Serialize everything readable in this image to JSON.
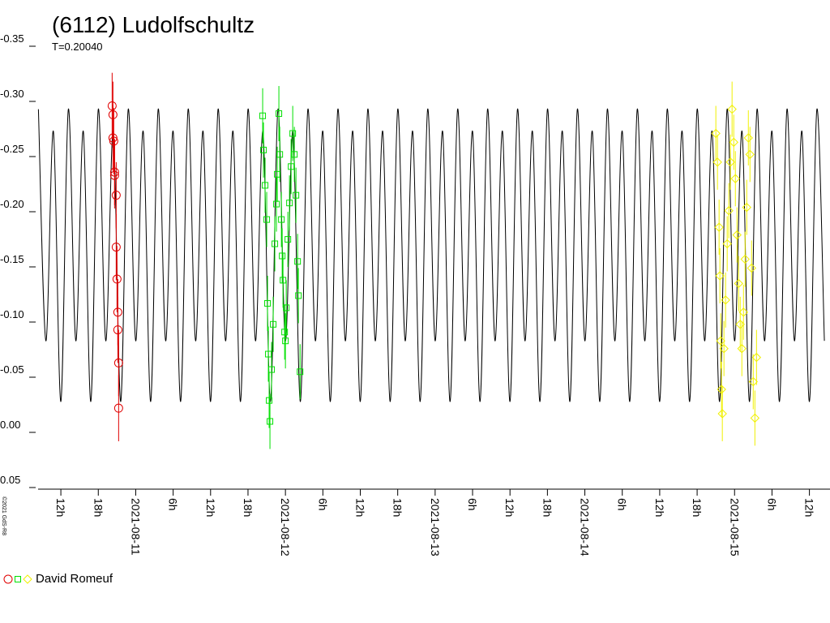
{
  "chart_data": {
    "type": "lightcurve",
    "title": "(6112) Ludolfschultz",
    "subtitle": "T=0.20040",
    "watermark": "©2021 GdS-R8",
    "observer": "David Romeuf",
    "ylim": [
      -0.35,
      0.05
    ],
    "yticks": [
      -0.35,
      {
        "value": -0.3,
        "label": "-0.30"
      },
      -0.25,
      {
        "value": -0.2,
        "label": "-0.20"
      },
      -0.15,
      {
        "value": -0.1,
        "label": "-0.10"
      },
      -0.05,
      {
        "value": 0,
        "label": "0.00"
      },
      0.05
    ],
    "xlim": [
      8.35,
      135.3
    ],
    "xticks": [
      {
        "value": 12,
        "label": "12h"
      },
      {
        "value": 18,
        "label": "18h"
      },
      {
        "value": 24,
        "label": "2021-08-11"
      },
      {
        "value": 30,
        "label": "6h"
      },
      {
        "value": 36,
        "label": "12h"
      },
      {
        "value": 42,
        "label": "18h"
      },
      {
        "value": 48,
        "label": "2021-08-12"
      },
      {
        "value": 54,
        "label": "6h"
      },
      {
        "value": 60,
        "label": "12h"
      },
      {
        "value": 66,
        "label": "18h"
      },
      {
        "value": 72,
        "label": "2021-08-13"
      },
      {
        "value": 78,
        "label": "6h"
      },
      {
        "value": 84,
        "label": "12h"
      },
      {
        "value": 90,
        "label": "18h"
      },
      {
        "value": 96,
        "label": "2021-08-14"
      },
      {
        "value": 102,
        "label": "6h"
      },
      {
        "value": 108,
        "label": "12h"
      },
      {
        "value": 114,
        "label": "18h"
      },
      {
        "value": 120,
        "label": "2021-08-15"
      },
      {
        "value": 126,
        "label": "6h"
      },
      {
        "value": 132,
        "label": "12h"
      }
    ],
    "curve": {
      "color": "#000000",
      "x": [
        8.4,
        9.6,
        10.8,
        12,
        13.2,
        14.4,
        15.6,
        16.8,
        18,
        19.2,
        20.4,
        21.6,
        22.8,
        24,
        25.2,
        26.4,
        27.6,
        28.8,
        30,
        31.2,
        32.4,
        33.6,
        34.8,
        36,
        37.2,
        38.4,
        39.6,
        40.8,
        42,
        43.2,
        44.4,
        45.6,
        46.8,
        48,
        49.2,
        50.4,
        51.6,
        52.8,
        54,
        55.2,
        56.4,
        57.6,
        58.8,
        60,
        61.2,
        62.4,
        63.6,
        64.8,
        66,
        67.2,
        68.4,
        69.6,
        70.8,
        72,
        73.2,
        74.4,
        75.6,
        76.8,
        78,
        79.2,
        80.4,
        81.6,
        82.8,
        84,
        85.2,
        86.4,
        87.6,
        88.8,
        90,
        91.2,
        92.4,
        93.6,
        94.8,
        96,
        97.2,
        98.4,
        99.6,
        100.8,
        102,
        103.2,
        104.4,
        105.6,
        106.8,
        108,
        109.2,
        110.4,
        111.6,
        112.8,
        114,
        115.2,
        116.4,
        117.6,
        118.8,
        120,
        121.2,
        122.4,
        123.6,
        124.8,
        126,
        127.2,
        128.4,
        129.6,
        130.8,
        132,
        133.2,
        134.4
      ],
      "values": [
        -0.29,
        -0.08,
        -0.27,
        -0.025,
        -0.29,
        -0.08,
        -0.27,
        -0.025,
        -0.29,
        -0.08,
        -0.27,
        -0.025,
        -0.29,
        -0.08,
        -0.27,
        -0.025,
        -0.29,
        -0.08,
        -0.27,
        -0.025,
        -0.29,
        -0.08,
        -0.27,
        -0.025,
        -0.29,
        -0.08,
        -0.27,
        -0.025,
        -0.29,
        -0.08,
        -0.27,
        -0.025,
        -0.29,
        -0.08,
        -0.27,
        -0.025,
        -0.29,
        -0.08,
        -0.27,
        -0.025,
        -0.29,
        -0.08,
        -0.27,
        -0.025,
        -0.29,
        -0.08,
        -0.27,
        -0.025,
        -0.29,
        -0.08,
        -0.27,
        -0.025,
        -0.29,
        -0.08,
        -0.27,
        -0.025,
        -0.29,
        -0.08,
        -0.27,
        -0.025,
        -0.29,
        -0.08,
        -0.27,
        -0.025,
        -0.29,
        -0.08,
        -0.27,
        -0.025,
        -0.29,
        -0.08,
        -0.27,
        -0.025,
        -0.29,
        -0.08,
        -0.27,
        -0.025,
        -0.29,
        -0.08,
        -0.27,
        -0.025,
        -0.29,
        -0.08,
        -0.27,
        -0.025,
        -0.29,
        -0.08,
        -0.27,
        -0.025,
        -0.29,
        -0.08,
        -0.27,
        -0.025,
        -0.29,
        -0.08,
        -0.27,
        -0.025,
        -0.29,
        -0.08,
        -0.27,
        -0.025,
        -0.29,
        -0.08,
        -0.27,
        -0.025,
        -0.29,
        -0.08
      ]
    },
    "series": [
      {
        "color": "#e00000",
        "marker": "circle",
        "error": 0.03,
        "x": [
          20.22,
          20.35,
          20.35,
          20.48,
          20.61,
          20.61,
          20.87,
          20.87,
          21.0,
          21.13,
          21.13,
          21.26,
          21.26
        ],
        "values": [
          -0.293,
          -0.285,
          -0.264,
          -0.261,
          -0.233,
          -0.23,
          -0.212,
          -0.165,
          -0.136,
          -0.106,
          -0.09,
          -0.06,
          -0.019
        ]
      },
      {
        "color": "#00e000",
        "marker": "square",
        "error": 0.025,
        "x": [
          44.35,
          44.48,
          44.74,
          45.0,
          45.13,
          45.26,
          45.39,
          45.52,
          45.78,
          46.04,
          46.3,
          46.56,
          46.69,
          46.95,
          47.09,
          47.35,
          47.48,
          47.61,
          47.87,
          48.0,
          48.13,
          48.39,
          48.65,
          48.91,
          49.17,
          49.43,
          49.69,
          49.95,
          50.08,
          50.35
        ],
        "values": [
          -0.284,
          -0.253,
          -0.221,
          -0.19,
          -0.114,
          -0.068,
          -0.026,
          -0.007,
          -0.054,
          -0.095,
          -0.168,
          -0.204,
          -0.231,
          -0.286,
          -0.249,
          -0.19,
          -0.157,
          -0.135,
          -0.088,
          -0.08,
          -0.11,
          -0.172,
          -0.205,
          -0.238,
          -0.268,
          -0.249,
          -0.212,
          -0.152,
          -0.121,
          -0.052
        ]
      },
      {
        "color": "#f0f000",
        "marker": "diamond",
        "error": 0.025,
        "x": [
          117.0,
          117.26,
          117.52,
          117.65,
          117.78,
          117.91,
          118.04,
          118.3,
          118.56,
          118.82,
          119.08,
          119.34,
          119.6,
          119.87,
          120.13,
          120.39,
          120.65,
          120.91,
          121.17,
          121.43,
          121.69,
          121.95,
          122.21,
          122.47,
          122.73,
          122.99,
          123.26,
          123.52
        ],
        "values": [
          -0.268,
          -0.242,
          -0.183,
          -0.139,
          -0.08,
          -0.036,
          -0.014,
          -0.073,
          -0.117,
          -0.168,
          -0.198,
          -0.242,
          -0.29,
          -0.26,
          -0.227,
          -0.176,
          -0.132,
          -0.095,
          -0.073,
          -0.106,
          -0.154,
          -0.201,
          -0.264,
          -0.249,
          -0.146,
          -0.043,
          -0.01,
          -0.065
        ]
      }
    ]
  }
}
